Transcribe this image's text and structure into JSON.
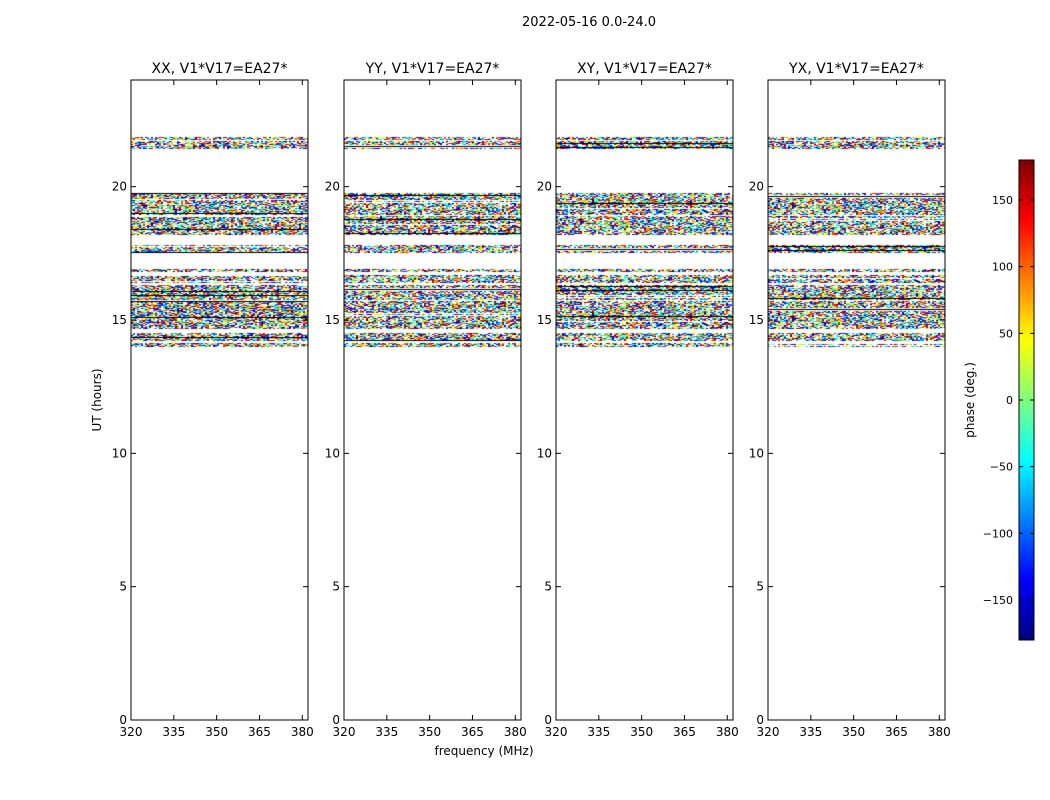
{
  "figure": {
    "suptitle": "2022-05-16 0.0-24.0",
    "xlabel": "frequency (MHz)",
    "ylabel": "UT (hours)"
  },
  "chart_data": {
    "type": "heatmap",
    "panels": [
      {
        "title": "XX, V1*V17=EA27*"
      },
      {
        "title": "YY, V1*V17=EA27*"
      },
      {
        "title": "XY, V1*V17=EA27*"
      },
      {
        "title": "YX, V1*V17=EA27*"
      }
    ],
    "x": {
      "label": "frequency (MHz)",
      "range": [
        320,
        382
      ],
      "ticks": [
        320,
        335,
        350,
        365,
        380
      ]
    },
    "y": {
      "label": "UT (hours)",
      "range": [
        0,
        24
      ],
      "ticks": [
        0,
        5,
        10,
        15,
        20
      ]
    },
    "colorbar": {
      "label": "phase (deg.)",
      "range": [
        -180,
        180
      ],
      "ticks": [
        -150,
        -100,
        -50,
        0,
        50,
        100,
        150
      ],
      "colormap": "jet",
      "colors": [
        "#00007f",
        "#0000ff",
        "#007fff",
        "#00ffff",
        "#7fff7f",
        "#ffff00",
        "#ff7f00",
        "#ff0000",
        "#7f0000"
      ]
    },
    "data_coverage_ut_hours": [
      [
        14.0,
        14.15
      ],
      [
        14.2,
        14.5
      ],
      [
        14.65,
        15.7
      ],
      [
        15.75,
        16.3
      ],
      [
        16.4,
        16.7
      ],
      [
        16.8,
        16.9
      ],
      [
        17.5,
        17.8
      ],
      [
        18.2,
        18.9
      ],
      [
        18.95,
        19.75
      ],
      [
        21.4,
        21.7
      ],
      [
        21.75,
        21.85
      ]
    ],
    "grid": false
  }
}
